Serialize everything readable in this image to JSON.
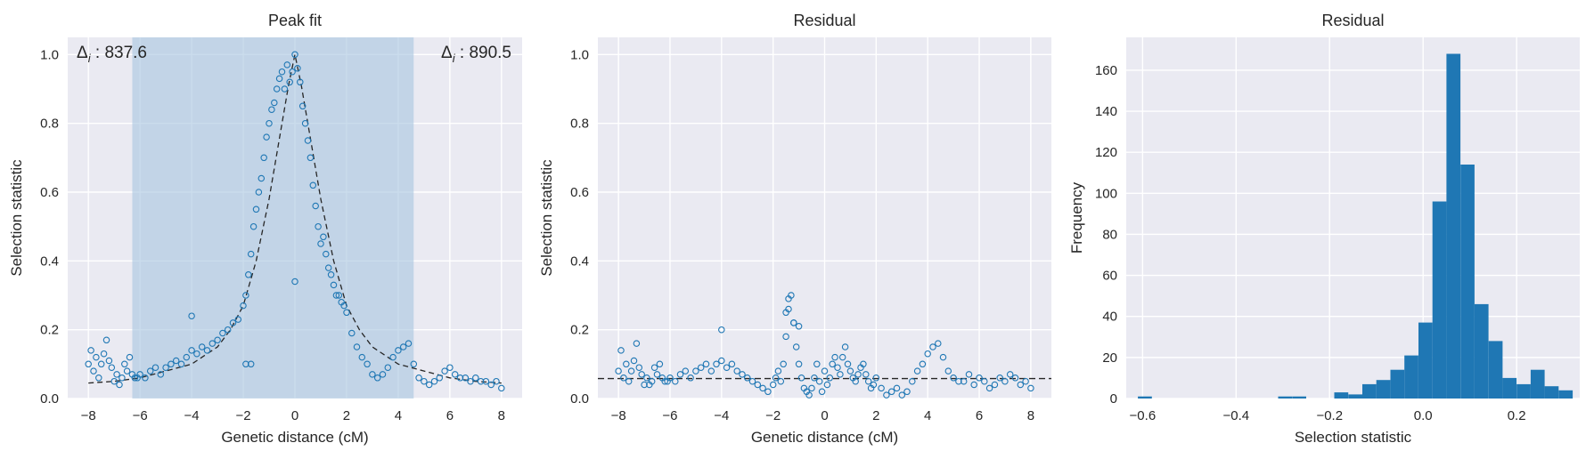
{
  "panels": [
    {
      "title": "Peak fit",
      "xlabel": "Genetic distance (cM)",
      "ylabel": "Selection statistic",
      "xlim": [
        -8.8,
        8.8
      ],
      "ylim": [
        0,
        1.05
      ],
      "xticks": [
        -8,
        -6,
        -4,
        -2,
        0,
        2,
        4,
        6,
        8
      ],
      "yticks": [
        0.0,
        0.2,
        0.4,
        0.6,
        0.8,
        1.0
      ],
      "xtick_labels": [
        "−8",
        "−6",
        "−4",
        "−2",
        "0",
        "2",
        "4",
        "6",
        "8"
      ],
      "ytick_labels": [
        "0.0",
        "0.2",
        "0.4",
        "0.6",
        "0.8",
        "1.0"
      ],
      "shaded_region": [
        -6.3,
        4.6
      ],
      "annotation_left": "837.6",
      "annotation_right": "890.5"
    },
    {
      "title": "Residual",
      "xlabel": "Genetic distance (cM)",
      "ylabel": "Selection statistic",
      "xlim": [
        -8.8,
        8.8
      ],
      "ylim": [
        0,
        1.05
      ],
      "xticks": [
        -8,
        -6,
        -4,
        -2,
        0,
        2,
        4,
        6,
        8
      ],
      "yticks": [
        0.0,
        0.2,
        0.4,
        0.6,
        0.8,
        1.0
      ],
      "xtick_labels": [
        "−8",
        "−6",
        "−4",
        "−2",
        "0",
        "2",
        "4",
        "6",
        "8"
      ],
      "ytick_labels": [
        "0.0",
        "0.2",
        "0.4",
        "0.6",
        "0.8",
        "1.0"
      ],
      "baseline": 0.058
    },
    {
      "title": "Residual",
      "xlabel": "Selection statistic",
      "ylabel": "Frequency",
      "xlim": [
        -0.635,
        0.335
      ],
      "ylim": [
        0,
        176
      ],
      "xticks": [
        -0.6,
        -0.4,
        -0.2,
        0.0,
        0.2
      ],
      "yticks": [
        0,
        20,
        40,
        60,
        80,
        100,
        120,
        140,
        160
      ],
      "xtick_labels": [
        "−0.6",
        "−0.4",
        "−0.2",
        "0.0",
        "0.2"
      ],
      "ytick_labels": [
        "0",
        "20",
        "40",
        "60",
        "80",
        "100",
        "120",
        "140",
        "160"
      ]
    }
  ],
  "colors": {
    "axes_bg": "#eaeaf2",
    "grid": "#ffffff",
    "series": "#1f77b4",
    "shade": "#aac6e0",
    "fit_line": "#262626"
  },
  "chart_data": [
    {
      "type": "scatter",
      "title": "Peak fit",
      "xlabel": "Genetic distance (cM)",
      "ylabel": "Selection statistic",
      "ylim": [
        0,
        1.05
      ],
      "grid": true,
      "shaded_region_x": [
        -6.3,
        4.6
      ],
      "annotations": [
        "Δi : 837.6",
        "Δi : 890.5"
      ],
      "fit_curve": {
        "x": [
          -8,
          -7,
          -6,
          -5,
          -4,
          -3,
          -2.5,
          -2,
          -1.5,
          -1,
          -0.5,
          -0.25,
          0,
          0.25,
          0.5,
          1,
          1.5,
          2,
          2.5,
          3,
          4,
          5,
          6,
          7,
          8
        ],
        "y": [
          0.045,
          0.05,
          0.06,
          0.08,
          0.1,
          0.15,
          0.2,
          0.27,
          0.4,
          0.58,
          0.8,
          0.91,
          1.0,
          0.91,
          0.8,
          0.58,
          0.4,
          0.27,
          0.2,
          0.15,
          0.1,
          0.08,
          0.06,
          0.05,
          0.045
        ]
      },
      "points": {
        "x": [
          -8.0,
          -7.9,
          -7.8,
          -7.7,
          -7.6,
          -7.5,
          -7.4,
          -7.3,
          -7.2,
          -7.1,
          -7.0,
          -6.9,
          -6.8,
          -6.7,
          -6.6,
          -6.5,
          -6.4,
          -6.3,
          -6.2,
          -6.1,
          -6.0,
          -5.8,
          -5.6,
          -5.4,
          -5.2,
          -5.0,
          -4.8,
          -4.6,
          -4.4,
          -4.2,
          -4.0,
          -3.8,
          -3.6,
          -3.4,
          -3.2,
          -3.0,
          -2.8,
          -2.6,
          -2.4,
          -2.2,
          -2.0,
          -1.9,
          -1.8,
          -1.7,
          -1.6,
          -1.5,
          -1.4,
          -1.3,
          -1.2,
          -1.1,
          -1.0,
          -0.9,
          -0.8,
          -0.7,
          -0.6,
          -0.5,
          -0.4,
          -0.3,
          -0.2,
          -0.1,
          0.0,
          0.1,
          0.2,
          0.3,
          0.4,
          0.5,
          0.6,
          0.7,
          0.8,
          0.9,
          1.0,
          1.1,
          1.2,
          1.3,
          1.4,
          1.5,
          1.6,
          1.7,
          1.8,
          1.9,
          2.0,
          2.2,
          2.4,
          2.6,
          2.8,
          3.0,
          3.2,
          3.4,
          3.6,
          3.8,
          4.0,
          4.2,
          4.4,
          4.6,
          4.8,
          5.0,
          5.2,
          5.4,
          5.6,
          5.8,
          6.0,
          6.2,
          6.4,
          6.6,
          6.8,
          7.0,
          7.2,
          7.4,
          7.6,
          7.8,
          8.0,
          -4.0,
          -1.9,
          -1.7,
          0.0
        ],
        "y": [
          0.1,
          0.14,
          0.08,
          0.12,
          0.06,
          0.1,
          0.13,
          0.17,
          0.11,
          0.09,
          0.05,
          0.07,
          0.04,
          0.06,
          0.1,
          0.08,
          0.12,
          0.07,
          0.06,
          0.06,
          0.07,
          0.06,
          0.08,
          0.09,
          0.07,
          0.09,
          0.1,
          0.11,
          0.1,
          0.12,
          0.14,
          0.13,
          0.15,
          0.14,
          0.16,
          0.17,
          0.19,
          0.2,
          0.22,
          0.23,
          0.27,
          0.3,
          0.36,
          0.42,
          0.5,
          0.55,
          0.6,
          0.64,
          0.7,
          0.76,
          0.8,
          0.84,
          0.86,
          0.9,
          0.93,
          0.95,
          0.9,
          0.97,
          0.92,
          0.95,
          1.0,
          0.96,
          0.92,
          0.85,
          0.8,
          0.75,
          0.7,
          0.62,
          0.56,
          0.5,
          0.45,
          0.47,
          0.42,
          0.38,
          0.36,
          0.33,
          0.3,
          0.3,
          0.28,
          0.27,
          0.25,
          0.19,
          0.15,
          0.12,
          0.1,
          0.07,
          0.06,
          0.07,
          0.09,
          0.12,
          0.14,
          0.15,
          0.16,
          0.1,
          0.06,
          0.05,
          0.04,
          0.05,
          0.06,
          0.08,
          0.09,
          0.07,
          0.06,
          0.06,
          0.05,
          0.06,
          0.05,
          0.05,
          0.04,
          0.05,
          0.03,
          0.24,
          0.1,
          0.1,
          0.34
        ]
      }
    },
    {
      "type": "scatter",
      "title": "Residual",
      "xlabel": "Genetic distance (cM)",
      "ylabel": "Selection statistic",
      "ylim": [
        0,
        1.05
      ],
      "grid": true,
      "baseline_y": 0.058,
      "points": {
        "x": [
          -8.0,
          -7.9,
          -7.8,
          -7.7,
          -7.6,
          -7.5,
          -7.4,
          -7.3,
          -7.2,
          -7.1,
          -7.0,
          -6.9,
          -6.8,
          -6.7,
          -6.6,
          -6.5,
          -6.4,
          -6.3,
          -6.2,
          -6.1,
          -6.0,
          -5.8,
          -5.6,
          -5.4,
          -5.2,
          -5.0,
          -4.8,
          -4.6,
          -4.4,
          -4.2,
          -4.0,
          -3.8,
          -3.6,
          -3.4,
          -3.2,
          -3.0,
          -2.8,
          -2.6,
          -2.4,
          -2.2,
          -2.0,
          -1.9,
          -1.8,
          -1.7,
          -1.6,
          -1.5,
          -1.4,
          -1.3,
          -1.2,
          -1.1,
          -1.0,
          -0.9,
          -0.8,
          -0.7,
          -0.6,
          -0.5,
          -0.4,
          -0.3,
          -0.2,
          -0.1,
          0.0,
          0.1,
          0.2,
          0.3,
          0.4,
          0.5,
          0.6,
          0.7,
          0.8,
          0.9,
          1.0,
          1.1,
          1.2,
          1.3,
          1.4,
          1.5,
          1.6,
          1.7,
          1.8,
          1.9,
          2.0,
          2.2,
          2.4,
          2.6,
          2.8,
          3.0,
          3.2,
          3.4,
          3.6,
          3.8,
          4.0,
          4.2,
          4.4,
          4.6,
          4.8,
          5.0,
          5.2,
          5.4,
          5.6,
          5.8,
          6.0,
          6.2,
          6.4,
          6.6,
          6.8,
          7.0,
          7.2,
          7.4,
          7.6,
          7.8,
          8.0,
          -4.0,
          -1.5,
          -1.4,
          -1.2,
          -1.0
        ],
        "y": [
          0.08,
          0.14,
          0.06,
          0.1,
          0.05,
          0.08,
          0.11,
          0.16,
          0.09,
          0.07,
          0.04,
          0.06,
          0.04,
          0.05,
          0.09,
          0.07,
          0.1,
          0.06,
          0.05,
          0.05,
          0.06,
          0.05,
          0.07,
          0.08,
          0.06,
          0.08,
          0.09,
          0.1,
          0.08,
          0.1,
          0.11,
          0.09,
          0.1,
          0.08,
          0.07,
          0.06,
          0.05,
          0.04,
          0.03,
          0.02,
          0.04,
          0.06,
          0.08,
          0.05,
          0.1,
          0.18,
          0.26,
          0.3,
          0.22,
          0.15,
          0.1,
          0.06,
          0.03,
          0.02,
          0.01,
          0.03,
          0.06,
          0.1,
          0.05,
          0.02,
          0.08,
          0.04,
          0.06,
          0.1,
          0.12,
          0.09,
          0.07,
          0.12,
          0.15,
          0.1,
          0.08,
          0.06,
          0.05,
          0.07,
          0.09,
          0.1,
          0.07,
          0.05,
          0.03,
          0.04,
          0.06,
          0.03,
          0.01,
          0.02,
          0.03,
          0.01,
          0.02,
          0.05,
          0.08,
          0.1,
          0.13,
          0.15,
          0.16,
          0.12,
          0.08,
          0.06,
          0.05,
          0.05,
          0.07,
          0.04,
          0.06,
          0.05,
          0.03,
          0.04,
          0.06,
          0.05,
          0.07,
          0.06,
          0.04,
          0.05,
          0.03,
          0.2,
          0.25,
          0.29,
          0.22,
          0.21
        ]
      }
    },
    {
      "type": "bar",
      "title": "Residual",
      "xlabel": "Selection statistic",
      "ylabel": "Frequency",
      "ylim": [
        0,
        176
      ],
      "grid": true,
      "bin_width": 0.03,
      "bin_left_edges": [
        -0.61,
        -0.31,
        -0.28,
        -0.19,
        -0.16,
        -0.13,
        -0.1,
        -0.07,
        -0.04,
        -0.01,
        0.02,
        0.05,
        0.08,
        0.11,
        0.14,
        0.17,
        0.2,
        0.23,
        0.26,
        0.29
      ],
      "values": [
        1,
        1,
        1,
        3,
        2,
        7,
        9,
        14,
        21,
        37,
        96,
        168,
        114,
        46,
        28,
        10,
        7,
        14,
        6,
        4
      ]
    }
  ]
}
